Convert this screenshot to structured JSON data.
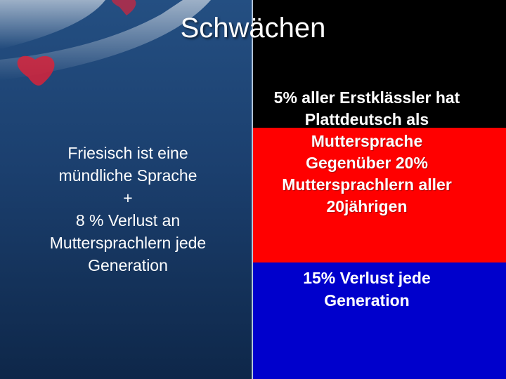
{
  "slide": {
    "title": "Schwächen",
    "left_lines": [
      "Friesisch ist eine",
      "mündliche Sprache",
      "+",
      "8 % Verlust an",
      "Muttersprachlern jede",
      "Generation"
    ],
    "right_top_lines": [
      "5% aller Erstklässler hat",
      "Plattdeutsch als",
      "Muttersprache",
      "Gegenüber 20%",
      "Muttersprachlern aller",
      "20jährigen"
    ],
    "right_bottom_lines": [
      "15% Verlust jede",
      "Generation"
    ]
  },
  "colors": {
    "black": "#000000",
    "red": "#ff0000",
    "blue": "#0000cc",
    "left_panel": "#1b3f6e"
  },
  "decorations": {
    "left_background_image": "frisian-flag-icon"
  }
}
